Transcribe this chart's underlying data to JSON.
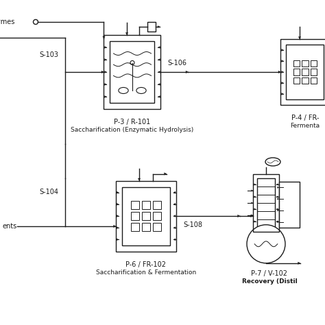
{
  "bg_color": "#ffffff",
  "line_color": "#1a1a1a",
  "reactor_top_label": "P-3 / R-101",
  "reactor_top_sublabel": "Saccharification (Enzymatic Hydrolysis)",
  "fermenter_top_label": "P-4 / FR-",
  "fermenter_top_sublabel": "Fermenta",
  "reactor_bot_label": "P-6 / FR-102",
  "reactor_bot_sublabel": "Saccharification & Fermentation",
  "distill_label": "P-7 / V-102",
  "distill_sublabel": "Recovery (Distil",
  "stream_106": "S-106",
  "stream_103": "S-103",
  "stream_104": "S-104",
  "stream_108": "S-108",
  "label_enzymes": "zymes",
  "label_ents": "ents"
}
